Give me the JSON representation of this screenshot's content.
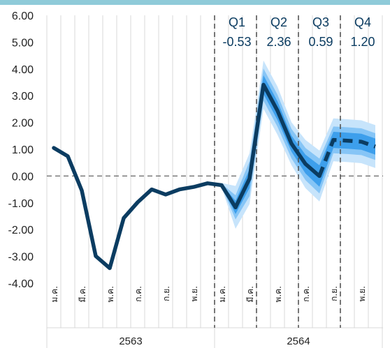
{
  "chart_data": {
    "type": "line",
    "title": "",
    "xlabel": "",
    "ylabel": "",
    "ylim": [
      -4,
      6
    ],
    "yticks": [
      "6.00",
      "5.00",
      "4.00",
      "3.00",
      "2.00",
      "1.00",
      "0.00",
      "-1.00",
      "-2.00",
      "-3.00",
      "-4.00"
    ],
    "month_labels": [
      "ม.ค.",
      "มี.ค.",
      "พ.ค.",
      "ก.ค.",
      "ก.ย.",
      "พ.ย.",
      "ม.ค.",
      "มี.ค.",
      "พ.ค.",
      "ก.ค.",
      "ก.ย.",
      "พ.ย."
    ],
    "years": [
      "2563",
      "2564"
    ],
    "quarters": [
      {
        "label": "Q1",
        "value": "-0.53"
      },
      {
        "label": "Q2",
        "value": "2.36"
      },
      {
        "label": "Q3",
        "value": "0.59"
      },
      {
        "label": "Q4",
        "value": "1.20"
      }
    ],
    "series": [
      {
        "style": "actual",
        "x": [
          0,
          1,
          2,
          3,
          4,
          5,
          6,
          7,
          8,
          9,
          10,
          11,
          12,
          13
        ],
        "values": [
          1.05,
          0.74,
          -0.54,
          -2.99,
          -3.44,
          -1.57,
          -0.98,
          -0.5,
          -0.69,
          -0.5,
          -0.41,
          -0.27,
          -0.34,
          -1.17
        ]
      },
      {
        "style": "forecast-solid",
        "x": [
          13,
          14,
          15,
          16,
          17,
          18,
          19
        ],
        "values": [
          -1.17,
          -0.1,
          3.41,
          2.44,
          1.21,
          0.45,
          0.0
        ]
      },
      {
        "style": "forecast-dashed",
        "x": [
          19,
          20,
          21,
          22,
          23
        ],
        "values": [
          0.0,
          1.35,
          1.32,
          1.28,
          1.1
        ]
      }
    ],
    "fan_band": {
      "x": [
        12,
        13,
        14,
        15,
        16,
        17,
        18,
        19,
        20,
        21,
        22,
        23
      ],
      "center": [
        -0.34,
        -1.17,
        -0.1,
        3.41,
        2.44,
        1.21,
        0.45,
        0.0,
        1.35,
        1.32,
        1.28,
        1.1
      ],
      "inner_halfwidth": [
        0.03,
        0.25,
        0.35,
        0.35,
        0.35,
        0.3,
        0.35,
        0.4,
        0.3,
        0.3,
        0.3,
        0.3
      ],
      "middle_halfwidth": [
        0.05,
        0.45,
        0.65,
        0.6,
        0.6,
        0.55,
        0.6,
        0.65,
        0.5,
        0.5,
        0.5,
        0.5
      ],
      "outer_halfwidth": [
        0.08,
        0.8,
        0.95,
        0.9,
        0.9,
        0.8,
        0.9,
        0.95,
        0.8,
        0.8,
        0.8,
        0.8
      ]
    }
  },
  "colors": {
    "line": "#0b3c61",
    "band_outer": "#c7e4fb",
    "band_middle": "#86c5f6",
    "band_inner": "#3d9fec",
    "grid": "#d9d9d9",
    "zero_line": "#666666",
    "quarter_divider": "#555555",
    "top_bar": "#8fcbd9"
  }
}
